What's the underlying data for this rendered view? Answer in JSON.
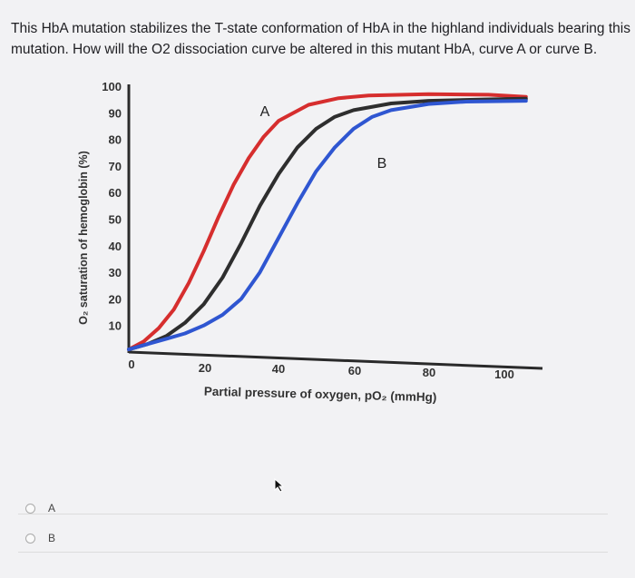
{
  "question": {
    "text": "This HbA mutation stabilizes the T-state conformation of HbA in the highland individuals bearing this mutation. How will the O2 dissociation curve be altered in this mutant HbA, curve A or curve B."
  },
  "chart_data": {
    "type": "line",
    "xlabel": "Partial pressure of oxygen, pO₂ (mmHg)",
    "ylabel": "O₂ saturation of hemoglobin (%)",
    "xlim": [
      0,
      110
    ],
    "ylim": [
      0,
      100
    ],
    "x_ticks": [
      "0",
      "20",
      "40",
      "60",
      "80",
      "100"
    ],
    "y_ticks": [
      "10",
      "20",
      "30",
      "40",
      "50",
      "60",
      "70",
      "80",
      "90",
      "100"
    ],
    "grid": false,
    "legend": "none",
    "series": [
      {
        "name": "A",
        "color": "#d62e2e",
        "points": [
          [
            0,
            1
          ],
          [
            4,
            4
          ],
          [
            8,
            9
          ],
          [
            12,
            16
          ],
          [
            16,
            26
          ],
          [
            20,
            38
          ],
          [
            24,
            51
          ],
          [
            28,
            63
          ],
          [
            32,
            73
          ],
          [
            36,
            81
          ],
          [
            40,
            87
          ],
          [
            48,
            93
          ],
          [
            56,
            95.5
          ],
          [
            64,
            96.5
          ],
          [
            80,
            97
          ],
          [
            96,
            96.8
          ],
          [
            106,
            96
          ]
        ]
      },
      {
        "color": "#2e2e2e",
        "points": [
          [
            0,
            1
          ],
          [
            5,
            3
          ],
          [
            10,
            6
          ],
          [
            15,
            11
          ],
          [
            20,
            18
          ],
          [
            25,
            28
          ],
          [
            30,
            41
          ],
          [
            35,
            55
          ],
          [
            40,
            67
          ],
          [
            45,
            77
          ],
          [
            50,
            84
          ],
          [
            55,
            88.5
          ],
          [
            60,
            91
          ],
          [
            70,
            93.5
          ],
          [
            80,
            94.5
          ],
          [
            95,
            95
          ],
          [
            106,
            95.3
          ]
        ]
      },
      {
        "name": "B",
        "color": "#2f56d1",
        "points": [
          [
            0,
            1
          ],
          [
            5,
            3
          ],
          [
            10,
            5
          ],
          [
            15,
            7
          ],
          [
            20,
            10
          ],
          [
            25,
            14
          ],
          [
            30,
            20
          ],
          [
            35,
            30
          ],
          [
            40,
            43
          ],
          [
            45,
            56
          ],
          [
            50,
            68
          ],
          [
            55,
            77
          ],
          [
            60,
            84
          ],
          [
            65,
            88.5
          ],
          [
            70,
            91
          ],
          [
            80,
            93.3
          ],
          [
            90,
            94.2
          ],
          [
            106,
            94.5
          ]
        ]
      }
    ]
  },
  "options": [
    {
      "label": "A"
    },
    {
      "label": "B"
    }
  ]
}
